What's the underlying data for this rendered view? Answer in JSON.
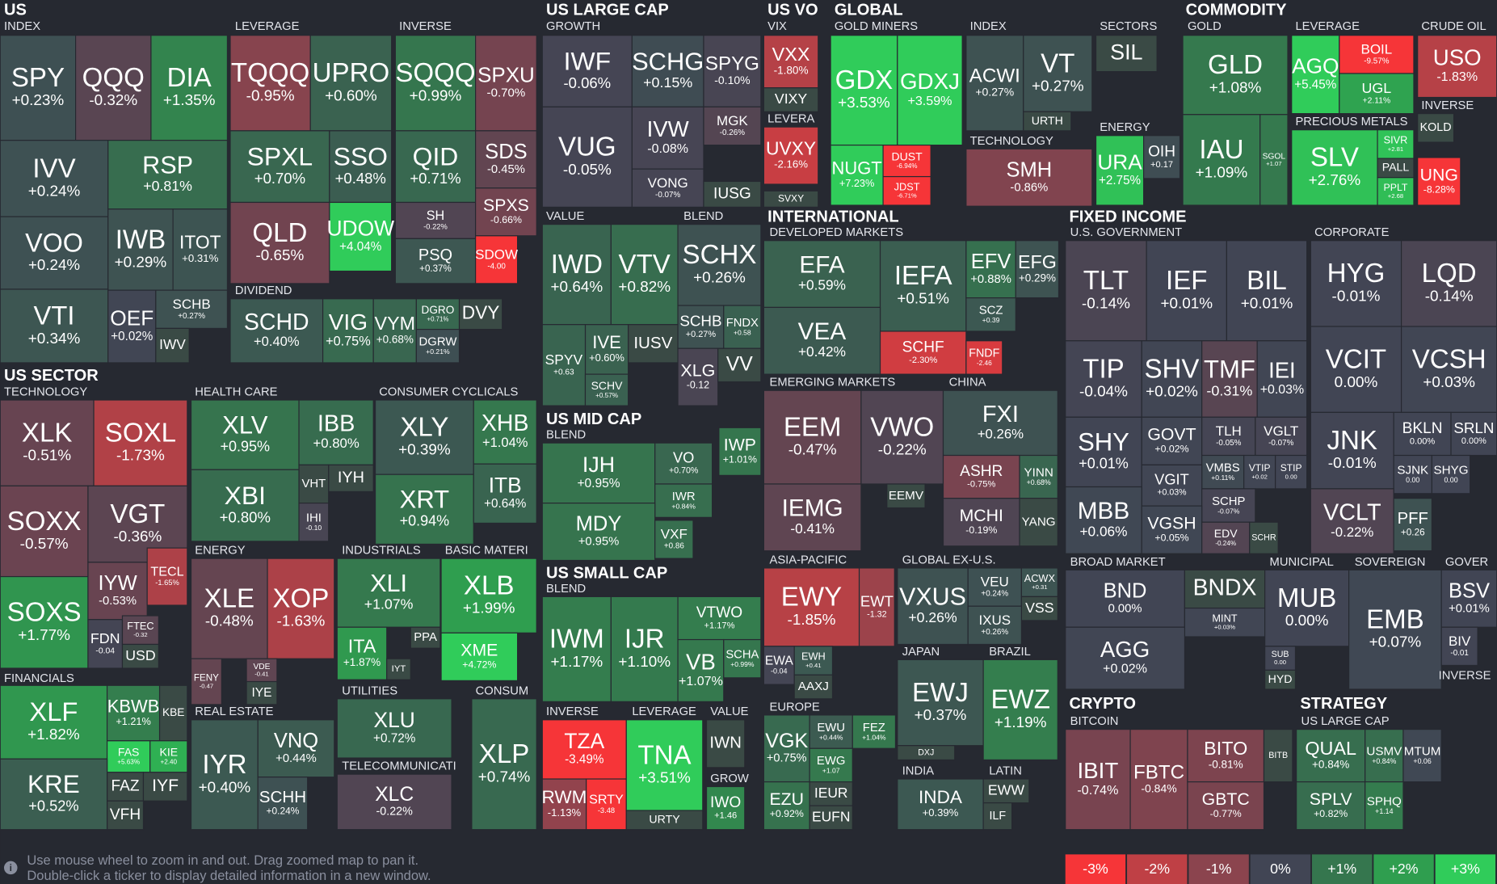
{
  "header_labels": [
    "US",
    "INDEX",
    "LEVERAGE",
    "INVERSE",
    "DIVIDEND",
    "US SECTOR",
    "TECHNOLOGY",
    "HEALTH CARE",
    "CONSUMER CYCLICALS",
    "FINANCIALS",
    "ENERGY",
    "INDUSTRIALS",
    "BASIC MATERI",
    "REAL ESTATE",
    "UTILITIES",
    "CONSUM",
    "TELECOMMUNICATI",
    "US LARGE CAP",
    "GROWTH",
    "VALUE",
    "BLEND",
    "US MID CAP",
    "BLEND",
    "US SMALL CAP",
    "BLEND",
    "INVERSE",
    "LEVERAGE",
    "VALUE",
    "GROW",
    "US VO",
    "VIX",
    "LEVERA",
    "GLOBAL",
    "GOLD MINERS",
    "INDEX",
    "TECHNOLOGY",
    "SECTORS",
    "ENERGY",
    "COMMODITY",
    "GOLD",
    "LEVERAGE",
    "PRECIOUS METALS",
    "CRUDE OIL",
    "INVERSE",
    "INTERNATIONAL",
    "DEVELOPED MARKETS",
    "EMERGING MARKETS",
    "CHINA",
    "ASIA-PACIFIC",
    "GLOBAL EX-U.S.",
    "EUROPE",
    "JAPAN",
    "BRAZIL",
    "INDIA",
    "LATIN",
    "FIXED INCOME",
    "U.S. GOVERNMENT",
    "CORPORATE",
    "BROAD MARKET",
    "MUNICIPAL",
    "SOVEREIGN",
    "GOVER",
    "INVERSE",
    "CRYPTO",
    "BITCOIN",
    "STRATEGY",
    "US LARGE CAP"
  ],
  "tiles": [
    {
      "ticker": "SPY",
      "change": "+0.23%"
    },
    {
      "ticker": "QQQ",
      "change": "-0.32%"
    },
    {
      "ticker": "DIA",
      "change": "+1.35%"
    },
    {
      "ticker": "TQQQ",
      "change": "-0.95%"
    },
    {
      "ticker": "UPRO",
      "change": "+0.60%"
    },
    {
      "ticker": "SQQQ",
      "change": "+0.99%"
    },
    {
      "ticker": "SPXU",
      "change": "-0.70%"
    },
    {
      "ticker": "IVV",
      "change": "+0.24%"
    },
    {
      "ticker": "RSP",
      "change": "+0.81%"
    },
    {
      "ticker": "VOO",
      "change": "+0.24%"
    },
    {
      "ticker": "IWB",
      "change": "+0.29%"
    },
    {
      "ticker": "ITOT",
      "change": "+0.31%"
    },
    {
      "ticker": "VTI",
      "change": "+0.34%"
    },
    {
      "ticker": "OEF",
      "change": "+0.02%"
    },
    {
      "ticker": "SCHB",
      "change": "+0.27%"
    },
    {
      "ticker": "IWV"
    },
    {
      "ticker": "SPXL",
      "change": "+0.70%"
    },
    {
      "ticker": "SSO",
      "change": "+0.48%"
    },
    {
      "ticker": "QID",
      "change": "+0.71%"
    },
    {
      "ticker": "SDS",
      "change": "-0.45%"
    },
    {
      "ticker": "QLD",
      "change": "-0.65%"
    },
    {
      "ticker": "UDOW",
      "change": "+4.04%"
    },
    {
      "ticker": "SH",
      "change": "-0.22%"
    },
    {
      "ticker": "SPXS",
      "change": "-0.66%"
    },
    {
      "ticker": "PSQ",
      "change": "+0.37%"
    },
    {
      "ticker": "SDOW",
      "change": "-4.00"
    },
    {
      "ticker": "SCHD",
      "change": "+0.40%"
    },
    {
      "ticker": "VIG",
      "change": "+0.75%"
    },
    {
      "ticker": "VYM",
      "change": "+0.68%"
    },
    {
      "ticker": "DGRO",
      "change": "+0.71%"
    },
    {
      "ticker": "DVY"
    },
    {
      "ticker": "DGRW",
      "change": "+0.21%"
    },
    {
      "ticker": "XLK",
      "change": "-0.51%"
    },
    {
      "ticker": "SOXL",
      "change": "-1.73%"
    },
    {
      "ticker": "SOXX",
      "change": "-0.57%"
    },
    {
      "ticker": "VGT",
      "change": "-0.36%"
    },
    {
      "ticker": "SOXS",
      "change": "+1.77%"
    },
    {
      "ticker": "IYW",
      "change": "-0.53%"
    },
    {
      "ticker": "TECL",
      "change": "-1.65%"
    },
    {
      "ticker": "FDN",
      "change": "-0.04"
    },
    {
      "ticker": "FTEC",
      "change": "-0.32"
    },
    {
      "ticker": "USD"
    },
    {
      "ticker": "XLF",
      "change": "+1.82%"
    },
    {
      "ticker": "KBWB",
      "change": "+1.21%"
    },
    {
      "ticker": "KBE"
    },
    {
      "ticker": "FAS",
      "change": "+5.63%"
    },
    {
      "ticker": "KIE",
      "change": "+2.40"
    },
    {
      "ticker": "FAZ"
    },
    {
      "ticker": "IYF"
    },
    {
      "ticker": "VFH"
    },
    {
      "ticker": "KRE",
      "change": "+0.52%"
    },
    {
      "ticker": "XLV",
      "change": "+0.95%"
    },
    {
      "ticker": "IBB",
      "change": "+0.80%"
    },
    {
      "ticker": "XBI",
      "change": "+0.80%"
    },
    {
      "ticker": "IYH"
    },
    {
      "ticker": "VHT"
    },
    {
      "ticker": "IHI",
      "change": "-0.10"
    },
    {
      "ticker": "XLY",
      "change": "+0.39%"
    },
    {
      "ticker": "XHB",
      "change": "+1.04%"
    },
    {
      "ticker": "XRT",
      "change": "+0.94%"
    },
    {
      "ticker": "ITB",
      "change": "+0.64%"
    },
    {
      "ticker": "XLE",
      "change": "-0.48%"
    },
    {
      "ticker": "XOP",
      "change": "-1.63%"
    },
    {
      "ticker": "FENY",
      "change": "-0.47"
    },
    {
      "ticker": "VDE",
      "change": "-0.41"
    },
    {
      "ticker": "IYE"
    },
    {
      "ticker": "XLI",
      "change": "+1.07%"
    },
    {
      "ticker": "ITA",
      "change": "+1.87%"
    },
    {
      "ticker": "PPA"
    },
    {
      "ticker": "IYT"
    },
    {
      "ticker": "XLB",
      "change": "+1.99%"
    },
    {
      "ticker": "XME",
      "change": "+4.72%"
    },
    {
      "ticker": "XLU",
      "change": "+0.72%"
    },
    {
      "ticker": "XLC",
      "change": "-0.22%"
    },
    {
      "ticker": "XLP",
      "change": "+0.74%"
    },
    {
      "ticker": "IYR",
      "change": "+0.40%"
    },
    {
      "ticker": "VNQ",
      "change": "+0.44%"
    },
    {
      "ticker": "SCHH",
      "change": "+0.24%"
    },
    {
      "ticker": "IWF",
      "change": "-0.06%"
    },
    {
      "ticker": "SCHG",
      "change": "+0.15%"
    },
    {
      "ticker": "SPYG",
      "change": "-0.10%"
    },
    {
      "ticker": "VUG",
      "change": "-0.05%"
    },
    {
      "ticker": "IVW",
      "change": "-0.08%"
    },
    {
      "ticker": "MGK",
      "change": "-0.26%"
    },
    {
      "ticker": "VONG",
      "change": "-0.07%"
    },
    {
      "ticker": "IUSG"
    },
    {
      "ticker": "IWD",
      "change": "+0.64%"
    },
    {
      "ticker": "VTV",
      "change": "+0.82%"
    },
    {
      "ticker": "IVE",
      "change": "+0.60%"
    },
    {
      "ticker": "IUSV"
    },
    {
      "ticker": "SPYV",
      "change": "+0.63"
    },
    {
      "ticker": "SCHV",
      "change": "+0.57%"
    },
    {
      "ticker": "SCHX",
      "change": "+0.26%"
    },
    {
      "ticker": "SCHB",
      "change": "+0.27%"
    },
    {
      "ticker": "FNDX",
      "change": "+0.58"
    },
    {
      "ticker": "XLG",
      "change": "-0.12"
    },
    {
      "ticker": "VV"
    },
    {
      "ticker": "IJH",
      "change": "+0.95%"
    },
    {
      "ticker": "VO",
      "change": "+0.70%"
    },
    {
      "ticker": "IWP",
      "change": "+1.01%"
    },
    {
      "ticker": "IWR",
      "change": "+0.84%"
    },
    {
      "ticker": "MDY",
      "change": "+0.95%"
    },
    {
      "ticker": "VXF",
      "change": "+0.86"
    },
    {
      "ticker": "IWM",
      "change": "+1.17%"
    },
    {
      "ticker": "IJR",
      "change": "+1.10%"
    },
    {
      "ticker": "VTWO",
      "change": "+1.17%"
    },
    {
      "ticker": "VB",
      "change": "+1.07%"
    },
    {
      "ticker": "SCHA",
      "change": "+0.99%"
    },
    {
      "ticker": "TZA",
      "change": "-3.49%"
    },
    {
      "ticker": "RWM",
      "change": "-1.13%"
    },
    {
      "ticker": "SRTY",
      "change": "-3.48"
    },
    {
      "ticker": "TNA",
      "change": "+3.51%"
    },
    {
      "ticker": "URTY"
    },
    {
      "ticker": "IWN"
    },
    {
      "ticker": "IWO",
      "change": "+1.46"
    },
    {
      "ticker": "VXX",
      "change": "-1.80%"
    },
    {
      "ticker": "VIXY"
    },
    {
      "ticker": "UVXY",
      "change": "-2.16%"
    },
    {
      "ticker": "SVXY"
    },
    {
      "ticker": "GDX",
      "change": "+3.53%"
    },
    {
      "ticker": "GDXJ",
      "change": "+3.59%"
    },
    {
      "ticker": "NUGT",
      "change": "+7.23%"
    },
    {
      "ticker": "DUST",
      "change": "-6.94%"
    },
    {
      "ticker": "JDST",
      "change": "-6.71%"
    },
    {
      "ticker": "ACWI",
      "change": "+0.27%"
    },
    {
      "ticker": "VT",
      "change": "+0.27%"
    },
    {
      "ticker": "URTH"
    },
    {
      "ticker": "SMH",
      "change": "-0.86%"
    },
    {
      "ticker": "SIL"
    },
    {
      "ticker": "URA",
      "change": "+2.75%"
    },
    {
      "ticker": "OIH",
      "change": "+0.17"
    },
    {
      "ticker": "GLD",
      "change": "+1.08%"
    },
    {
      "ticker": "IAU",
      "change": "+1.09%"
    },
    {
      "ticker": "SGOL",
      "change": "+1.07"
    },
    {
      "ticker": "AGQ",
      "change": "+5.45%"
    },
    {
      "ticker": "BOIL",
      "change": "-9.57%"
    },
    {
      "ticker": "UGL",
      "change": "+2.11%"
    },
    {
      "ticker": "SLV",
      "change": "+2.76%"
    },
    {
      "ticker": "SIVR",
      "change": "+2.81"
    },
    {
      "ticker": "PALL"
    },
    {
      "ticker": "PPLT",
      "change": "+2.68"
    },
    {
      "ticker": "USO",
      "change": "-1.83%"
    },
    {
      "ticker": "KOLD"
    },
    {
      "ticker": "UNG",
      "change": "-8.28%"
    },
    {
      "ticker": "EFA",
      "change": "+0.59%"
    },
    {
      "ticker": "IEFA",
      "change": "+0.51%"
    },
    {
      "ticker": "EFV",
      "change": "+0.88%"
    },
    {
      "ticker": "EFG",
      "change": "+0.29%"
    },
    {
      "ticker": "VEA",
      "change": "+0.42%"
    },
    {
      "ticker": "SCZ",
      "change": "+0.39"
    },
    {
      "ticker": "SCHF",
      "change": "-2.30%"
    },
    {
      "ticker": "FNDF",
      "change": "-2.46"
    },
    {
      "ticker": "EEM",
      "change": "-0.47%"
    },
    {
      "ticker": "VWO",
      "change": "-0.22%"
    },
    {
      "ticker": "IEMG",
      "change": "-0.41%"
    },
    {
      "ticker": "EEMV"
    },
    {
      "ticker": "FXI",
      "change": "+0.26%"
    },
    {
      "ticker": "ASHR",
      "change": "-0.75%"
    },
    {
      "ticker": "YINN",
      "change": "+0.68%"
    },
    {
      "ticker": "MCHI",
      "change": "-0.19%"
    },
    {
      "ticker": "YANG"
    },
    {
      "ticker": "EWY",
      "change": "-1.85%"
    },
    {
      "ticker": "EWT",
      "change": "-1.32"
    },
    {
      "ticker": "EWA",
      "change": "-0.04"
    },
    {
      "ticker": "EWH",
      "change": "+0.41"
    },
    {
      "ticker": "AAXJ"
    },
    {
      "ticker": "VXUS",
      "change": "+0.26%"
    },
    {
      "ticker": "VEU",
      "change": "+0.24%"
    },
    {
      "ticker": "ACWX",
      "change": "+0.31"
    },
    {
      "ticker": "VSS"
    },
    {
      "ticker": "IXUS",
      "change": "+0.26%"
    },
    {
      "ticker": "VGK",
      "change": "+0.75%"
    },
    {
      "ticker": "EWU",
      "change": "+0.44%"
    },
    {
      "ticker": "FEZ",
      "change": "+1.04%"
    },
    {
      "ticker": "EWG",
      "change": "+1.07"
    },
    {
      "ticker": "EZU",
      "change": "+0.92%"
    },
    {
      "ticker": "IEUR"
    },
    {
      "ticker": "EUFN"
    },
    {
      "ticker": "EWJ",
      "change": "+0.37%"
    },
    {
      "ticker": "DXJ"
    },
    {
      "ticker": "INDA",
      "change": "+0.39%"
    },
    {
      "ticker": "EWZ",
      "change": "+1.19%"
    },
    {
      "ticker": "EWW"
    },
    {
      "ticker": "ILF"
    },
    {
      "ticker": "TLT",
      "change": "-0.14%"
    },
    {
      "ticker": "IEF",
      "change": "+0.01%"
    },
    {
      "ticker": "BIL",
      "change": "+0.01%"
    },
    {
      "ticker": "TIP",
      "change": "-0.04%"
    },
    {
      "ticker": "SHV",
      "change": "+0.02%"
    },
    {
      "ticker": "TMF",
      "change": "-0.31%"
    },
    {
      "ticker": "IEI",
      "change": "+0.03%"
    },
    {
      "ticker": "SHY",
      "change": "+0.01%"
    },
    {
      "ticker": "GOVT",
      "change": "+0.02%"
    },
    {
      "ticker": "TLH",
      "change": "-0.05%"
    },
    {
      "ticker": "VGLT",
      "change": "-0.07%"
    },
    {
      "ticker": "VMBS",
      "change": "+0.11%"
    },
    {
      "ticker": "VTIP",
      "change": "+0.02"
    },
    {
      "ticker": "STIP",
      "change": "0.00"
    },
    {
      "ticker": "VGIT",
      "change": "+0.03%"
    },
    {
      "ticker": "SCHP",
      "change": "-0.07%"
    },
    {
      "ticker": "MBB",
      "change": "+0.06%"
    },
    {
      "ticker": "VGSH",
      "change": "+0.05%"
    },
    {
      "ticker": "EDV",
      "change": "-0.24%"
    },
    {
      "ticker": "SCHR"
    },
    {
      "ticker": "HYG",
      "change": "-0.01%"
    },
    {
      "ticker": "LQD",
      "change": "-0.14%"
    },
    {
      "ticker": "VCIT",
      "change": "0.00%"
    },
    {
      "ticker": "VCSH",
      "change": "+0.03%"
    },
    {
      "ticker": "JNK",
      "change": "-0.01%"
    },
    {
      "ticker": "BKLN",
      "change": "0.00%"
    },
    {
      "ticker": "SRLN",
      "change": "0.00%"
    },
    {
      "ticker": "SJNK",
      "change": "0.00"
    },
    {
      "ticker": "SHYG",
      "change": "0.00"
    },
    {
      "ticker": "VCLT",
      "change": "-0.22%"
    },
    {
      "ticker": "PFF",
      "change": "+0.26"
    },
    {
      "ticker": "BND",
      "change": "0.00%"
    },
    {
      "ticker": "BNDX"
    },
    {
      "ticker": "MINT",
      "change": "+0.03%"
    },
    {
      "ticker": "AGG",
      "change": "+0.02%"
    },
    {
      "ticker": "MUB",
      "change": "0.00%"
    },
    {
      "ticker": "SUB",
      "change": "0.00"
    },
    {
      "ticker": "HYD"
    },
    {
      "ticker": "EMB",
      "change": "+0.07%"
    },
    {
      "ticker": "BSV",
      "change": "+0.01%"
    },
    {
      "ticker": "BIV",
      "change": "-0.01"
    },
    {
      "ticker": "IBIT",
      "change": "-0.74%"
    },
    {
      "ticker": "FBTC",
      "change": "-0.84%"
    },
    {
      "ticker": "BITO",
      "change": "-0.81%"
    },
    {
      "ticker": "BITB"
    },
    {
      "ticker": "GBTC",
      "change": "-0.77%"
    },
    {
      "ticker": "QUAL",
      "change": "+0.84%"
    },
    {
      "ticker": "USMV",
      "change": "+0.84%"
    },
    {
      "ticker": "MTUM",
      "change": "+0.06"
    },
    {
      "ticker": "SPLV",
      "change": "+0.82%"
    },
    {
      "ticker": "SPHQ",
      "change": "+1.14"
    }
  ],
  "footer": {
    "hint_lines": [
      "Use mouse wheel to zoom in and out. Drag zoomed map to pan it.",
      "Double-click a ticker to display detailed information in a new window."
    ],
    "legend": [
      {
        "label": "-3%",
        "color": "#f63538"
      },
      {
        "label": "-2%",
        "color": "#bf4045"
      },
      {
        "label": "-1%",
        "color": "#8b444e"
      },
      {
        "label": "0%",
        "color": "#414554"
      },
      {
        "label": "+1%",
        "color": "#35764e"
      },
      {
        "label": "+2%",
        "color": "#2f9e4f"
      },
      {
        "label": "+3%",
        "color": "#30cc5a"
      }
    ]
  }
}
